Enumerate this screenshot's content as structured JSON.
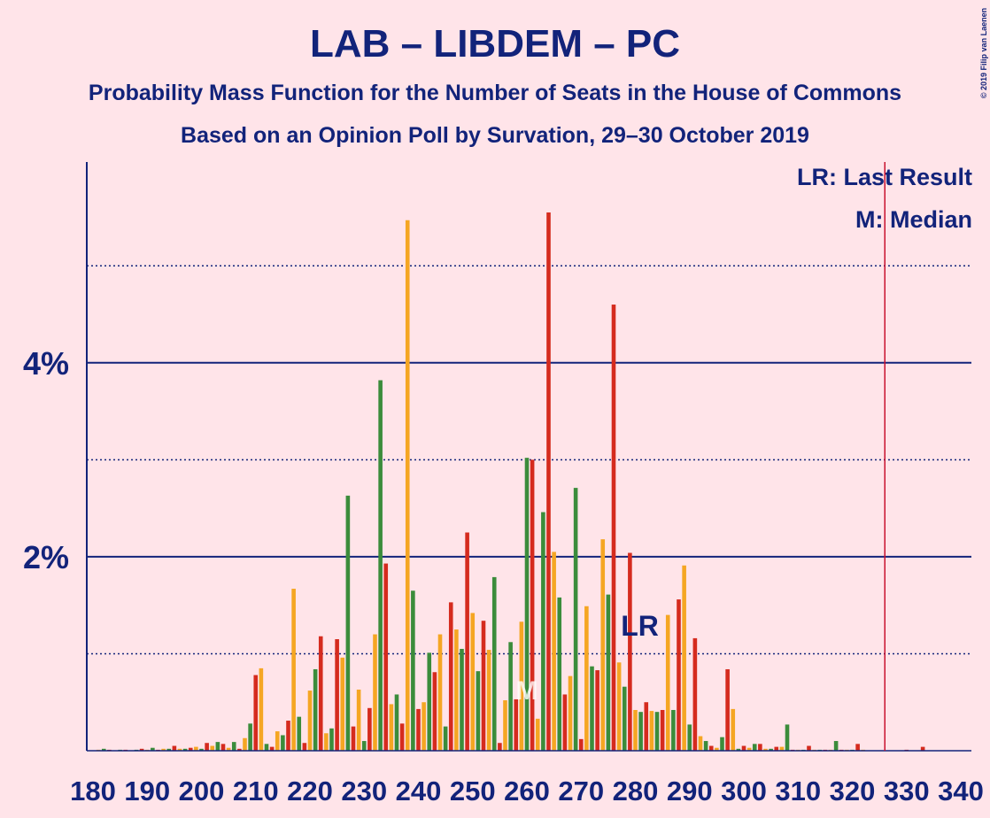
{
  "chart_data": {
    "type": "bar",
    "title": "LAB – LIBDEM – PC",
    "subtitle": "Probability Mass Function for the Number of Seats in the House of Commons",
    "subtitle2": "Based on an Opinion Poll by Survation, 29–30 October 2019",
    "copyright": "© 2019 Filip van Laenen",
    "legend_lr": "LR: Last Result",
    "legend_m": "M: Median",
    "lr_label": "LR",
    "median_label": "M",
    "last_result": 278,
    "median": 260,
    "majority_line": 326,
    "palette": [
      "#d52b1e",
      "#f5a623",
      "#3b8c3b"
    ],
    "x": [
      180,
      181,
      182,
      183,
      184,
      185,
      186,
      187,
      188,
      189,
      190,
      191,
      192,
      193,
      194,
      195,
      196,
      197,
      198,
      199,
      200,
      201,
      202,
      203,
      204,
      205,
      206,
      207,
      208,
      209,
      210,
      211,
      212,
      213,
      214,
      215,
      216,
      217,
      218,
      219,
      220,
      221,
      222,
      223,
      224,
      225,
      226,
      227,
      228,
      229,
      230,
      231,
      232,
      233,
      234,
      235,
      236,
      237,
      238,
      239,
      240,
      241,
      242,
      243,
      244,
      245,
      246,
      247,
      248,
      249,
      250,
      251,
      252,
      253,
      254,
      255,
      256,
      257,
      258,
      259,
      260,
      261,
      262,
      263,
      264,
      265,
      266,
      267,
      268,
      269,
      270,
      271,
      272,
      273,
      274,
      275,
      276,
      277,
      278,
      279,
      280,
      281,
      282,
      283,
      284,
      285,
      286,
      287,
      288,
      289,
      290,
      291,
      292,
      293,
      294,
      295,
      296,
      297,
      298,
      299,
      300,
      301,
      302,
      303,
      304,
      305,
      306,
      307,
      308,
      309,
      310,
      311,
      312,
      313,
      314,
      315,
      316,
      317,
      318,
      319,
      320,
      321,
      322,
      323,
      324,
      325,
      326,
      327,
      328,
      329,
      330,
      331,
      332,
      333,
      334,
      335,
      336,
      337,
      338,
      339,
      340
    ],
    "values": [
      0,
      0.01,
      0.02,
      0.01,
      0,
      0.01,
      0.01,
      0,
      0.01,
      0.02,
      0.01,
      0.03,
      0.01,
      0.02,
      0.02,
      0.05,
      0.02,
      0.02,
      0.03,
      0.04,
      0.02,
      0.08,
      0.05,
      0.09,
      0.07,
      0.03,
      0.09,
      0.02,
      0.13,
      0.28,
      0.78,
      0.85,
      0.07,
      0.04,
      0.2,
      0.16,
      0.31,
      1.67,
      0.35,
      0.08,
      0.62,
      0.84,
      1.18,
      0.18,
      0.23,
      1.15,
      0.96,
      2.63,
      0.25,
      0.63,
      0.1,
      0.44,
      1.2,
      3.82,
      1.93,
      0.48,
      0.58,
      0.28,
      5.47,
      1.65,
      0.43,
      0.5,
      1.01,
      0.81,
      1.2,
      0.25,
      1.53,
      1.25,
      1.05,
      2.25,
      1.42,
      0.82,
      1.34,
      1.04,
      1.79,
      0.08,
      0.52,
      1.12,
      0.53,
      1.33,
      3.02,
      3.0,
      0.33,
      2.46,
      5.55,
      2.05,
      1.58,
      0.58,
      0.77,
      2.71,
      0.12,
      1.49,
      0.87,
      0.83,
      2.18,
      1.61,
      4.6,
      0.91,
      0.66,
      2.04,
      0.42,
      0.4,
      0.5,
      0.41,
      0.4,
      0.42,
      1.4,
      0.42,
      1.56,
      1.91,
      0.27,
      1.16,
      0.15,
      0.1,
      0.05,
      0.03,
      0.14,
      0.84,
      0.43,
      0.02,
      0.05,
      0.03,
      0.07,
      0.07,
      0.02,
      0.02,
      0.04,
      0.04,
      0.27,
      0.01,
      0.01,
      0.01,
      0.05,
      0.01,
      0.01,
      0.01,
      0.01,
      0.1,
      0.01,
      0.01,
      0.01,
      0.07,
      0.01,
      0,
      0,
      0,
      0,
      0,
      0,
      0,
      0.01,
      0,
      0,
      0.04,
      0,
      0,
      0,
      0,
      0,
      0,
      0
    ],
    "xlim": [
      180,
      340
    ],
    "xticks": [
      180,
      190,
      200,
      210,
      220,
      230,
      240,
      250,
      260,
      270,
      280,
      290,
      300,
      310,
      320,
      330,
      340
    ],
    "ylim": [
      0,
      6.07
    ],
    "yticks": [
      {
        "value": 2,
        "label": "2%"
      },
      {
        "value": 4,
        "label": "4%"
      }
    ],
    "minor_yticks": [
      1,
      3,
      5
    ],
    "grid": true
  }
}
